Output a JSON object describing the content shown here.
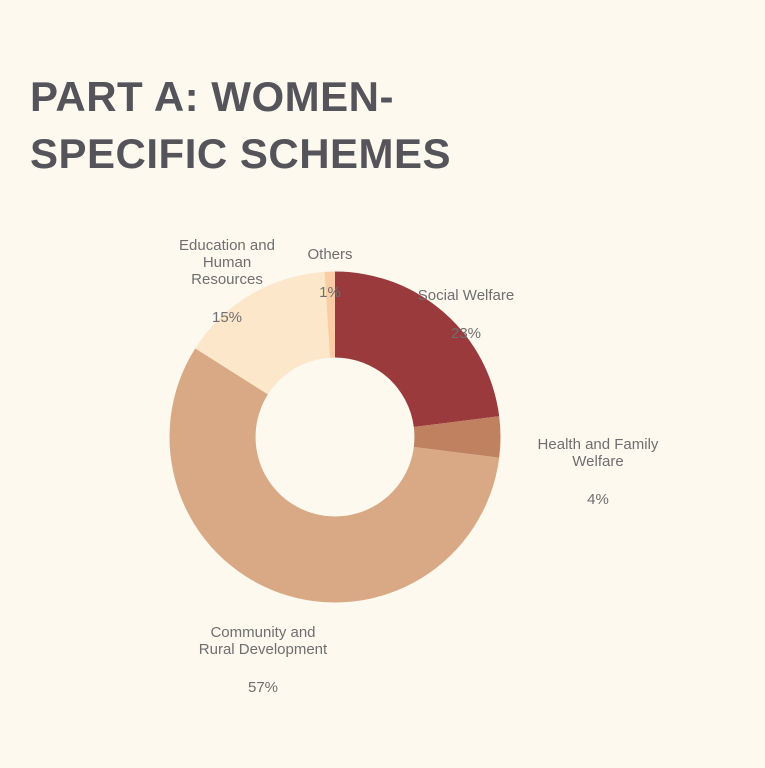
{
  "page": {
    "background_color": "#fdf9ef"
  },
  "title": {
    "text": "PART A: WOMEN-\nSPECIFIC SCHEMES",
    "color": "#54545a"
  },
  "chart_data": {
    "type": "pie",
    "subtype": "donut",
    "title": "PART A: WOMEN-SPECIFIC SCHEMES",
    "categories": [
      "Social Welfare",
      "Health and Family Welfare",
      "Community and Rural Development",
      "Education and Human Resources",
      "Others"
    ],
    "values": [
      23,
      4,
      57,
      15,
      1
    ],
    "unit": "%",
    "colors": [
      "#9b3a3c",
      "#bf8160",
      "#d8a984",
      "#fce7ca",
      "#fbcda4"
    ],
    "start_angle_deg": 0,
    "direction": "clockwise",
    "inner_radius_ratio": 0.48,
    "legend": "none",
    "labels": [
      {
        "name": "Social Welfare",
        "value": "23%"
      },
      {
        "name": "Health and Family Welfare",
        "value": "4%"
      },
      {
        "name": "Community and\nRural Development",
        "value": "57%"
      },
      {
        "name": "Education and\nHuman\nResources",
        "value": "15%"
      },
      {
        "name": "Others",
        "value": "1%"
      }
    ],
    "label_color": "#6f6f6f"
  }
}
